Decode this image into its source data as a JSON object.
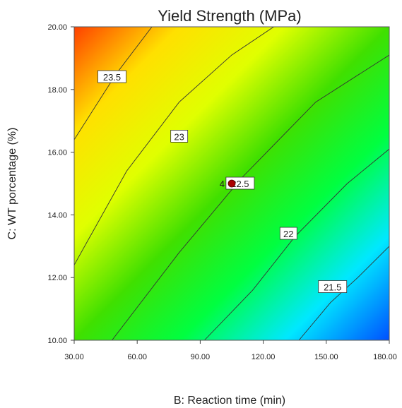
{
  "chart_data": {
    "type": "contour",
    "title": "Yield Strength (MPa)",
    "xlabel": "B: Reaction time (min)",
    "ylabel": "C: WT porcentage (%)",
    "xlim": [
      30,
      180
    ],
    "ylim": [
      10,
      20
    ],
    "x_ticks": [
      "30.00",
      "60.00",
      "90.00",
      "120.00",
      "150.00",
      "180.00"
    ],
    "y_ticks": [
      "10.00",
      "12.00",
      "14.00",
      "16.00",
      "18.00",
      "20.00"
    ],
    "colorscale": [
      "#0050ff",
      "#00e8ff",
      "#00ff40",
      "#40e000",
      "#e0ff00",
      "#ffe000",
      "#ff4000"
    ],
    "contours": [
      {
        "level": 23.5,
        "label": "23.5",
        "points": [
          [
            30,
            16.4
          ],
          [
            50,
            18.5
          ],
          [
            67,
            20.0
          ]
        ],
        "label_at": [
          48,
          18.4
        ]
      },
      {
        "level": 23,
        "label": "23",
        "points": [
          [
            30,
            12.4
          ],
          [
            55,
            15.4
          ],
          [
            80,
            17.6
          ],
          [
            105,
            19.1
          ],
          [
            125,
            20.0
          ]
        ],
        "label_at": [
          80,
          16.5
        ]
      },
      {
        "level": 22.5,
        "label": "22.5",
        "points": [
          [
            48,
            10.0
          ],
          [
            80,
            12.8
          ],
          [
            110,
            15.2
          ],
          [
            145,
            17.6
          ],
          [
            180,
            19.1
          ]
        ],
        "label_at": [
          109,
          15.0
        ]
      },
      {
        "level": 22,
        "label": "22",
        "points": [
          [
            92,
            10.0
          ],
          [
            115,
            11.6
          ],
          [
            135,
            13.3
          ],
          [
            160,
            15.0
          ],
          [
            180,
            16.1
          ]
        ],
        "label_at": [
          132,
          13.4
        ]
      },
      {
        "level": 21.5,
        "label": "21.5",
        "points": [
          [
            137,
            10.0
          ],
          [
            152,
            11.2
          ],
          [
            165,
            12.0
          ],
          [
            180,
            13.0
          ]
        ],
        "label_at": [
          153,
          11.7
        ]
      }
    ],
    "design_point": {
      "x": 105,
      "y": 15.0,
      "label": "4",
      "color": "#aa0000"
    },
    "grid": false
  }
}
